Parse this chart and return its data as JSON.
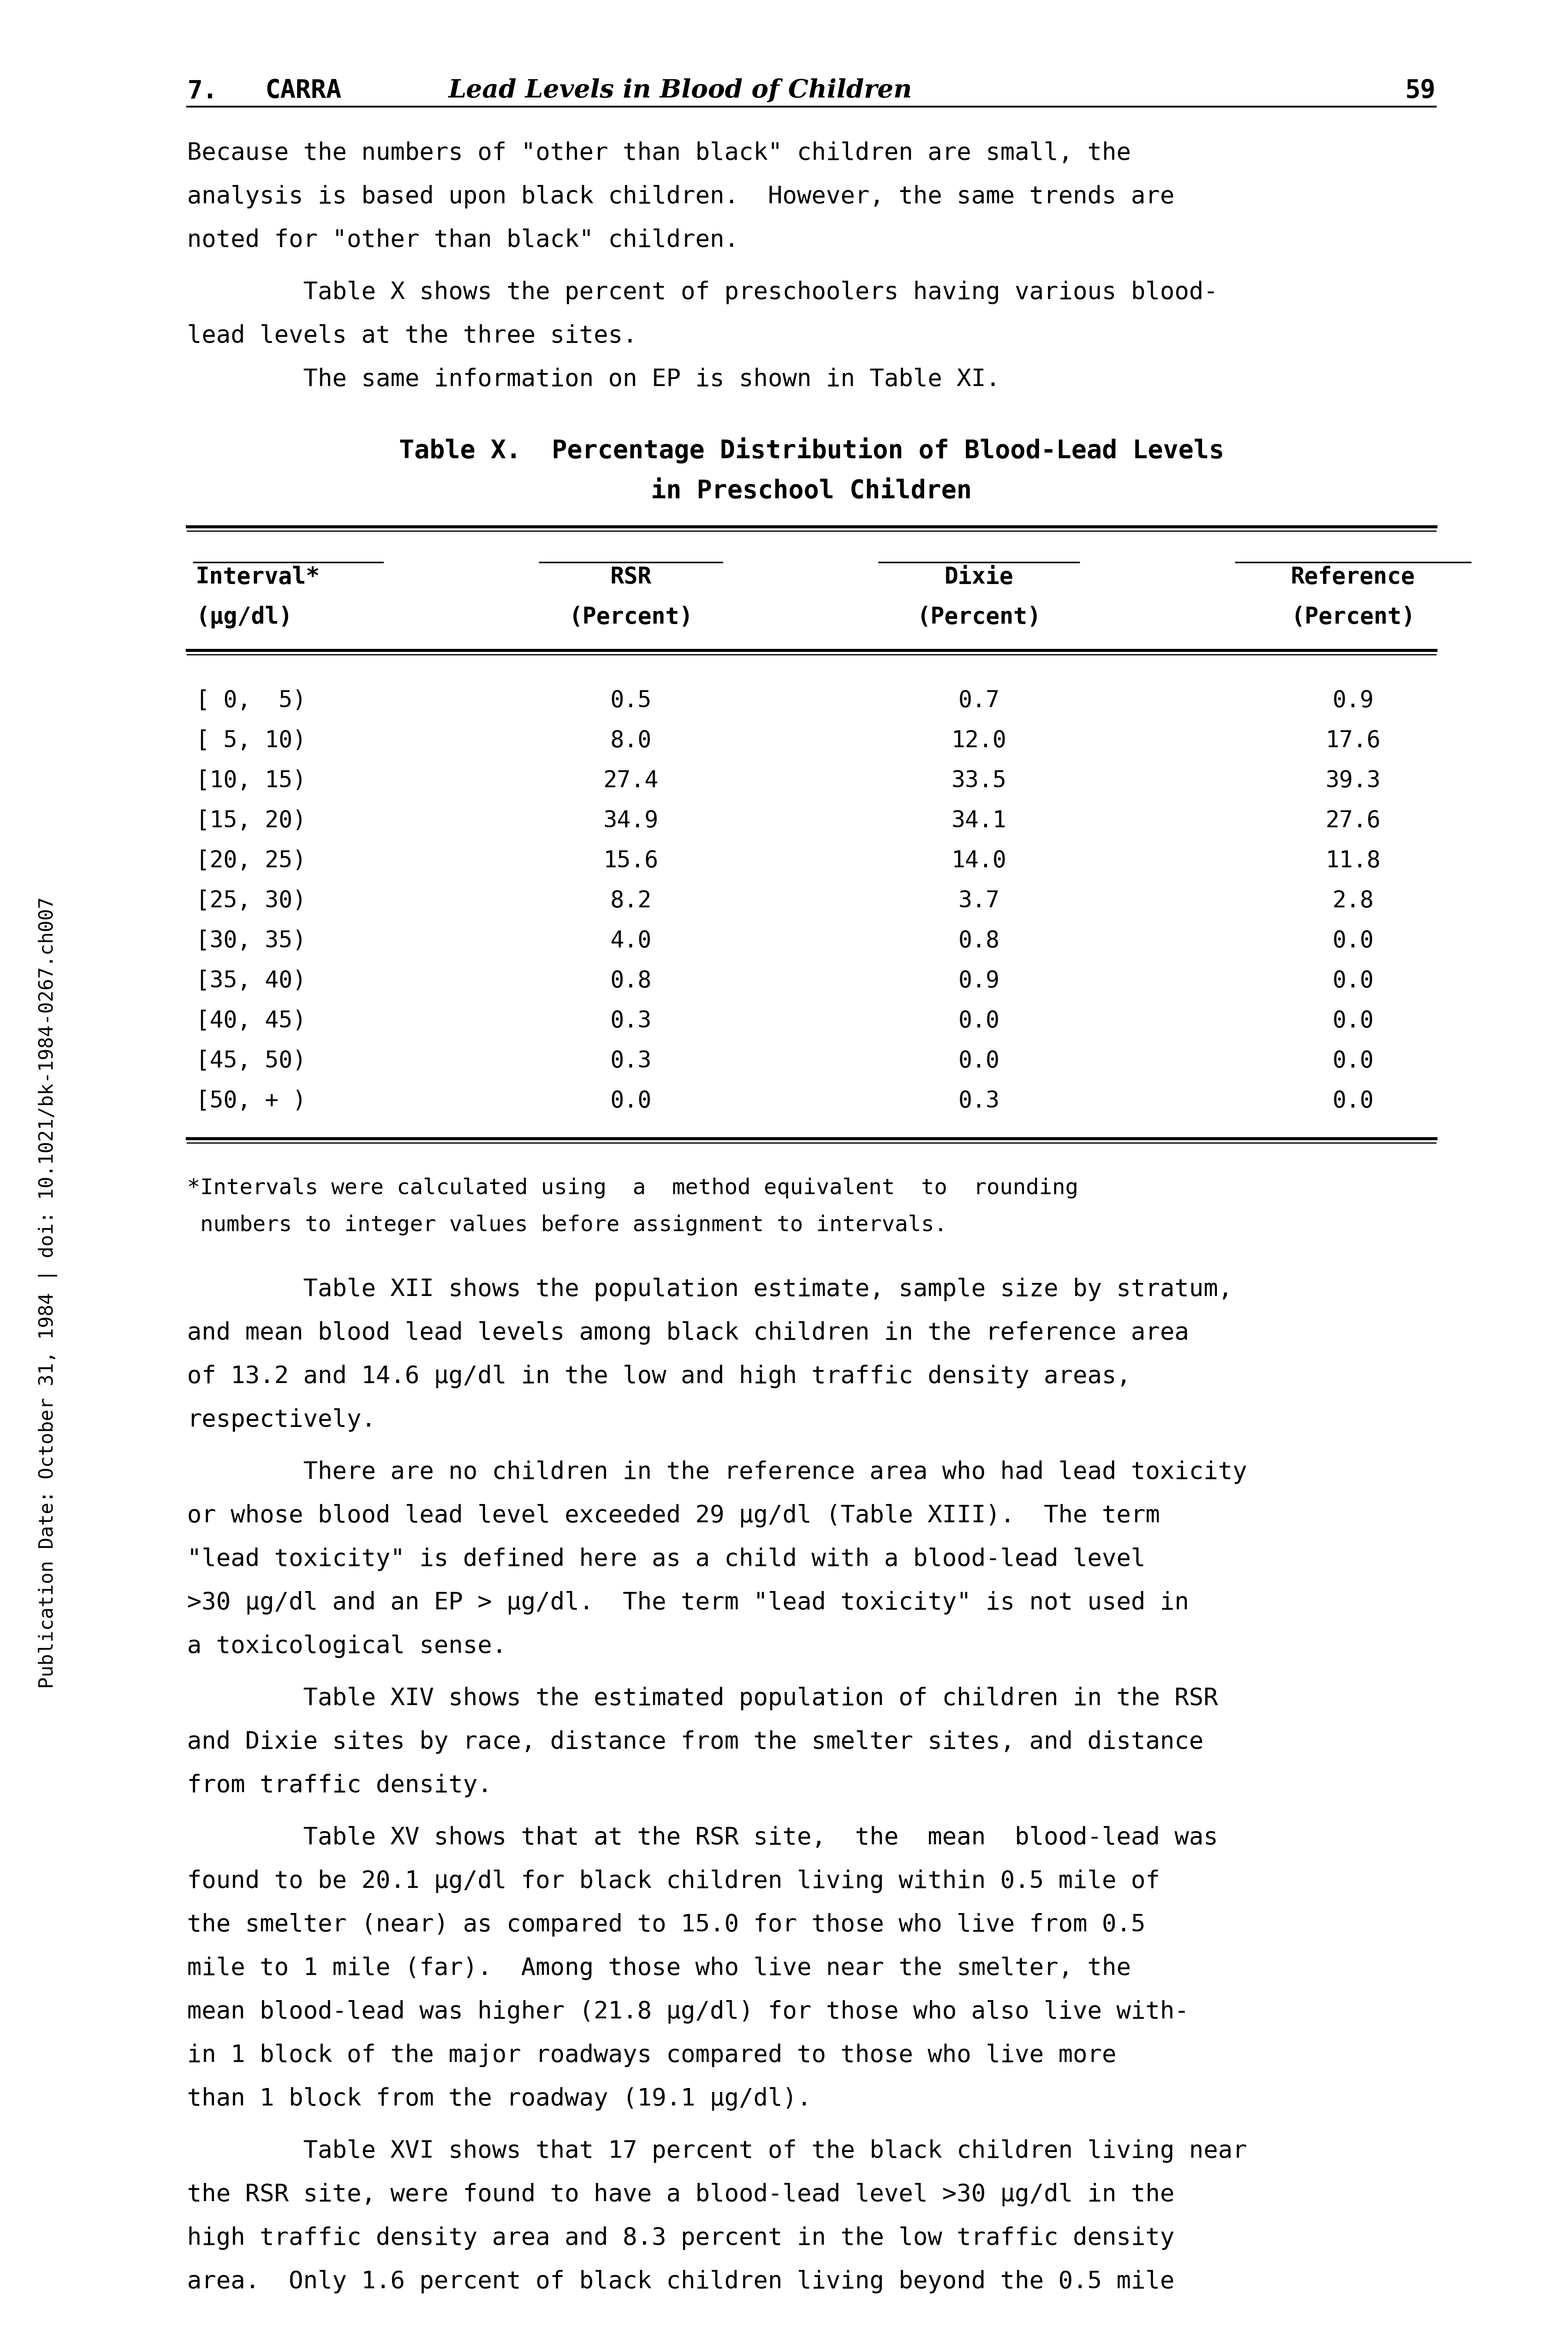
{
  "page_number": "59",
  "header_number": "7.",
  "header_author": "CARRA",
  "header_title": "Lead Levels in Blood of Children",
  "table_title_line1": "Table X.  Percentage Distribution of Blood-Lead Levels",
  "table_title_line2": "in Preschool Children",
  "table_col_headers": [
    [
      "Interval*",
      "(μg/dl)"
    ],
    [
      "RSR",
      "(Percent)"
    ],
    [
      "Dixie",
      "(Percent)"
    ],
    [
      "Reference",
      "(Percent)"
    ]
  ],
  "table_rows": [
    [
      "[ 0,  5)",
      "0.5",
      "0.7",
      "0.9"
    ],
    [
      "[ 5, 10)",
      "8.0",
      "12.0",
      "17.6"
    ],
    [
      "[10, 15)",
      "27.4",
      "33.5",
      "39.3"
    ],
    [
      "[15, 20)",
      "34.9",
      "34.1",
      "27.6"
    ],
    [
      "[20, 25)",
      "15.6",
      "14.0",
      "11.8"
    ],
    [
      "[25, 30)",
      "8.2",
      "3.7",
      "2.8"
    ],
    [
      "[30, 35)",
      "4.0",
      "0.8",
      "0.0"
    ],
    [
      "[35, 40)",
      "0.8",
      "0.9",
      "0.0"
    ],
    [
      "[40, 45)",
      "0.3",
      "0.0",
      "0.0"
    ],
    [
      "[45, 50)",
      "0.3",
      "0.0",
      "0.0"
    ],
    [
      "[50, + )",
      "0.0",
      "0.3",
      "0.0"
    ]
  ],
  "table_footnote_lines": [
    "*Intervals were calculated using  a  method equivalent  to  rounding",
    " numbers to integer values before assignment to intervals."
  ],
  "para1_lines": [
    "Because the numbers of \"other than black\" children are small, the",
    "analysis is based upon black children.  However, the same trends are",
    "noted for \"other than black\" children."
  ],
  "para2_lines": [
    "        Table X shows the percent of preschoolers having various blood-",
    "lead levels at the three sites."
  ],
  "para3_lines": [
    "        The same information on EP is shown in Table XI."
  ],
  "after_paras": [
    [
      "        Table XII shows the population estimate, sample size by stratum,",
      "and mean blood lead levels among black children in the reference area",
      "of 13.2 and 14.6 μg/dl in the low and high traffic density areas,",
      "respectively."
    ],
    [
      "        There are no children in the reference area who had lead toxicity",
      "or whose blood lead level exceeded 29 μg/dl (Table XIII).  The term",
      "\"lead toxicity\" is defined here as a child with a blood-lead level",
      ">30 μg/dl and an EP > μg/dl.  The term \"lead toxicity\" is not used in",
      "a toxicological sense."
    ],
    [
      "        Table XIV shows the estimated population of children in the RSR",
      "and Dixie sites by race, distance from the smelter sites, and distance",
      "from traffic density."
    ],
    [
      "        Table XV shows that at the RSR site,  the  mean  blood-lead was",
      "found to be 20.1 μg/dl for black children living within 0.5 mile of",
      "the smelter (near) as compared to 15.0 for those who live from 0.5",
      "mile to 1 mile (far).  Among those who live near the smelter, the",
      "mean blood-lead was higher (21.8 μg/dl) for those who also live with-",
      "in 1 block of the major roadways compared to those who live more",
      "than 1 block from the roadway (19.1 μg/dl)."
    ],
    [
      "        Table XVI shows that 17 percent of the black children living near",
      "the RSR site, were found to have a blood-lead level >30 μg/dl in the",
      "high traffic density area and 8.3 percent in the low traffic density",
      "area.  Only 1.6 percent of black children living beyond the 0.5 mile"
    ]
  ],
  "sidebar_text": "Publication Date: October 31, 1984 | doi: 10.1021/bk-1984-0267.ch007",
  "background_color": "#ffffff",
  "text_color": "#000000"
}
